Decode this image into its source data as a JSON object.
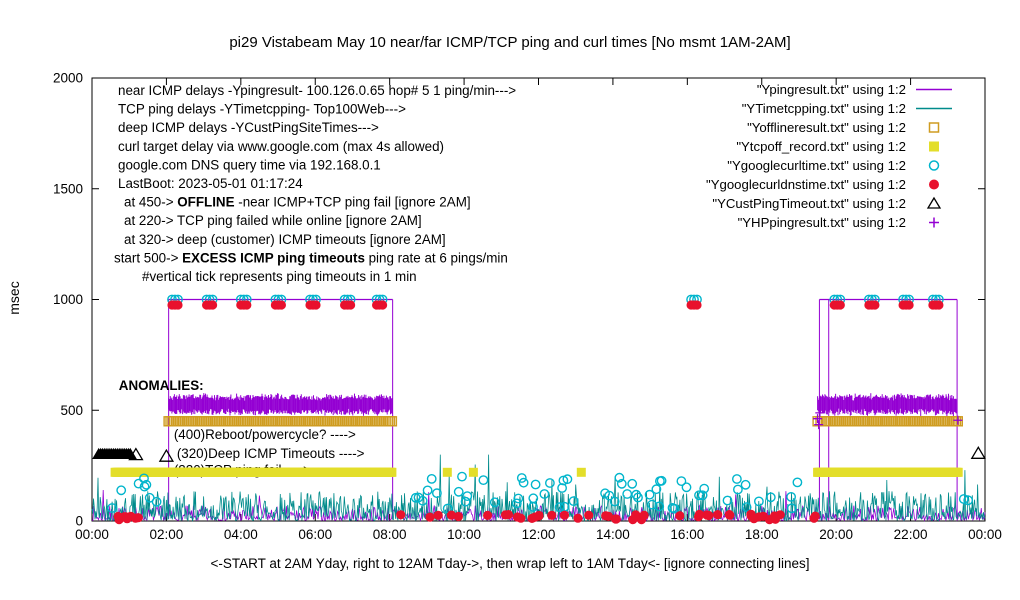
{
  "chart_data": {
    "type": "scatter",
    "title": "pi29 Vistabeam May 10  near/far ICMP/TCP ping and curl times [No msmt 1AM-2AM]",
    "ylabel": "msec",
    "xlabel": "<-START at 2AM Yday, right to 12AM Tday->, then wrap left to 1AM Tday<- [ignore connecting lines]",
    "xlim": [
      0,
      24
    ],
    "ylim": [
      0,
      2000
    ],
    "grid": false,
    "xticks": [
      {
        "v": 0,
        "label": "00:00"
      },
      {
        "v": 2,
        "label": "02:00"
      },
      {
        "v": 4,
        "label": "04:00"
      },
      {
        "v": 6,
        "label": "06:00"
      },
      {
        "v": 8,
        "label": "08:00"
      },
      {
        "v": 10,
        "label": "10:00"
      },
      {
        "v": 12,
        "label": "12:00"
      },
      {
        "v": 14,
        "label": "14:00"
      },
      {
        "v": 16,
        "label": "16:00"
      },
      {
        "v": 18,
        "label": "18:00"
      },
      {
        "v": 20,
        "label": "20:00"
      },
      {
        "v": 22,
        "label": "22:00"
      },
      {
        "v": 24,
        "label": "00:00"
      }
    ],
    "yticks": [
      {
        "v": 0,
        "label": "0"
      },
      {
        "v": 500,
        "label": "500"
      },
      {
        "v": 1000,
        "label": "1000"
      },
      {
        "v": 1500,
        "label": "1500"
      },
      {
        "v": 2000,
        "label": "2000"
      }
    ],
    "legend": [
      {
        "label": "\"Ypingresult.txt\" using 1:2",
        "marker": "line",
        "color": "#9400d3"
      },
      {
        "label": "\"YTimetcpping.txt\" using 1:2",
        "marker": "line",
        "color": "#008b8b"
      },
      {
        "label": "\"Yofflineresult.txt\" using 1:2",
        "marker": "square-open",
        "color": "#cf9c20"
      },
      {
        "label": "\"Ytcpoff_record.txt\" using 1:2",
        "marker": "square-filled",
        "color": "#e3de2a"
      },
      {
        "label": "\"Ygooglecurltime.txt\" using 1:2",
        "marker": "circle-open",
        "color": "#00b5cc"
      },
      {
        "label": "\"Ygooglecurldnstime.txt\" using 1:2",
        "marker": "circle-filled",
        "color": "#e8112d"
      },
      {
        "label": "\"YCustPingTimeout.txt\" using 1:2",
        "marker": "triangle-open",
        "color": "#000000"
      },
      {
        "label": "\"YHPpingresult.txt\" using 1:2",
        "marker": "plus",
        "color": "#9400d3"
      }
    ],
    "annotations": {
      "lines": [
        {
          "segs": [
            {
              "t": "near ICMP delays -Ypingresult- 100.126.0.65 hop# 5 1 ping/min--->"
            }
          ]
        },
        {
          "segs": [
            {
              "t": "TCP ping delays -YTimetcpping- Top100Web--->"
            }
          ]
        },
        {
          "segs": [
            {
              "t": "deep ICMP delays -YCustPingSiteTimes--->"
            }
          ]
        },
        {
          "segs": [
            {
              "t": "curl target delay via www.google.com (max 4s allowed)"
            }
          ]
        },
        {
          "segs": [
            {
              "t": "google.com DNS query time via 192.168.0.1"
            }
          ]
        },
        {
          "segs": [
            {
              "t": "LastBoot: 2023-05-01 01:17:24"
            }
          ]
        },
        {
          "indent": 6,
          "segs": [
            {
              "t": "at 450->  "
            },
            {
              "t": "OFFLINE",
              "b": true
            },
            {
              "t": "  -near ICMP+TCP ping fail [ignore 2AM]"
            }
          ]
        },
        {
          "indent": 6,
          "segs": [
            {
              "t": "at 220-> TCP ping failed while online [ignore 2AM]"
            }
          ]
        },
        {
          "indent": 6,
          "segs": [
            {
              "t": "at 320-> deep (customer) ICMP timeouts [ignore 2AM]"
            }
          ]
        },
        {
          "indent": -4,
          "segs": [
            {
              "t": "start 500->  "
            },
            {
              "t": "EXCESS ICMP ping timeouts",
              "b": true
            },
            {
              "t": "  ping rate at 6 pings/min"
            }
          ]
        },
        {
          "indent": 24,
          "segs": [
            {
              "t": "#vertical tick represents ping timeouts in 1 min"
            }
          ]
        }
      ]
    },
    "anomaly_labels": [
      {
        "t": "ANOMALIES:",
        "b": true,
        "x": 0.72,
        "y": 592
      },
      {
        "t": "(400)Reboot/powercycle? ---->",
        "x": 2.2,
        "y": 370
      },
      {
        "t": "(320)Deep ICMP Timeouts ---->",
        "x": 2.28,
        "y": 285
      },
      {
        "t": "(220)TCP ping fail ---->",
        "x": 2.2,
        "y": 210
      }
    ],
    "series": [
      {
        "name": "Ypingresult.txt",
        "kind": "noisy-line",
        "color": "#9400d3",
        "seed": 7,
        "x0": 0,
        "x1": 24,
        "step": 0.025,
        "ymin": 3,
        "ymax": 70,
        "pow": 2.2,
        "spikes": [
          [
            0.3,
            140
          ],
          [
            4.5,
            115
          ],
          [
            9.05,
            130
          ],
          [
            12.6,
            105
          ],
          [
            17.3,
            120
          ],
          [
            18.65,
            135
          ]
        ],
        "plateaus": [
          {
            "x0": 2.06,
            "x1": 8.08,
            "y": 1000
          },
          {
            "x0": 19.55,
            "x1": 23.25,
            "y": 1000
          }
        ],
        "verticals": [
          2.06,
          8.08,
          19.55,
          19.8,
          23.25
        ],
        "tick_bands": [
          {
            "x0": 2.06,
            "x1": 8.08,
            "yc": 525,
            "h": 90,
            "step": 0.022,
            "seed": 3
          },
          {
            "x0": 19.5,
            "x1": 23.25,
            "yc": 525,
            "h": 90,
            "step": 0.022,
            "seed": 4
          }
        ]
      },
      {
        "name": "YTimetcpping.txt",
        "kind": "noisy-line",
        "color": "#008b8b",
        "seed": 42,
        "x0": 0,
        "x1": 24,
        "step": 0.02,
        "ymin": 2,
        "ymax": 135,
        "pow": 1.8,
        "spikes": [
          [
            0.15,
            195
          ],
          [
            9.35,
            300
          ],
          [
            9.6,
            215
          ],
          [
            10.3,
            255
          ],
          [
            10.65,
            300
          ],
          [
            11.15,
            175
          ],
          [
            12.35,
            185
          ],
          [
            13.0,
            165
          ],
          [
            14.05,
            200
          ],
          [
            15.25,
            160
          ],
          [
            16.85,
            200
          ],
          [
            18.15,
            155
          ],
          [
            21.35,
            185
          ],
          [
            23.45,
            230
          ],
          [
            23.8,
            165
          ]
        ]
      },
      {
        "name": "Ytcpoff_record.txt",
        "kind": "squares",
        "fill": true,
        "color": "#e3de2a",
        "y": 220,
        "size": 9,
        "band_step": 0.03,
        "bands": [
          [
            0.62,
            8.08
          ],
          [
            19.5,
            23.3
          ]
        ],
        "points": [
          9.55,
          10.25,
          13.15
        ]
      },
      {
        "name": "Yofflineresult.txt",
        "kind": "squares",
        "fill": false,
        "color": "#cf9c20",
        "y": 450,
        "size": 9,
        "band_step": 0.05,
        "bands": [
          [
            2.06,
            8.08
          ],
          [
            19.72,
            23.3
          ]
        ],
        "points": [
          19.5,
          19.58
        ]
      },
      {
        "name": "Ygooglecurltime.txt",
        "kind": "circles",
        "fill": false,
        "color": "#00b5cc",
        "r": 4.2,
        "top_clusters": {
          "xs": [
            2.15,
            3.08,
            4.0,
            4.93,
            5.86,
            6.79,
            7.65,
            16.1,
            19.95,
            20.88,
            21.8,
            22.6
          ],
          "y": 1000,
          "n": 3,
          "dx": 0.08
        },
        "scatter": {
          "ranges": [
            [
              0.05,
              2.0
            ],
            [
              8.1,
              19.45
            ],
            [
              23.35,
              23.95
            ]
          ],
          "ymin": 55,
          "ymax": 205,
          "count": 70,
          "seed": 21
        }
      },
      {
        "name": "Ygooglecurldnstime.txt",
        "kind": "circles",
        "fill": true,
        "color": "#e8112d",
        "r": 4.6,
        "top_clusters": {
          "xs": [
            2.15,
            3.08,
            4.0,
            4.93,
            5.86,
            6.79,
            7.65,
            16.1,
            19.95,
            20.88,
            21.8,
            22.6
          ],
          "y": 975,
          "n": 3,
          "dx": 0.08
        },
        "scatter": {
          "ranges": [
            [
              0.05,
              2.0
            ],
            [
              8.1,
              19.45
            ],
            [
              23.35,
              23.95
            ]
          ],
          "ymin": 6,
          "ymax": 30,
          "count": 55,
          "seed": 33
        }
      },
      {
        "name": "YCustPingTimeout.txt",
        "kind": "triangles",
        "color": "#000000",
        "size": 13,
        "filled_cluster": {
          "x0": 0.18,
          "x1": 1.05,
          "y": 305,
          "step": 0.05
        },
        "open_points": [
          [
            1.18,
            302
          ],
          [
            2.0,
            295
          ],
          [
            23.82,
            308
          ]
        ]
      },
      {
        "name": "YHPpingresult.txt",
        "kind": "plus",
        "color": "#9400d3",
        "size": 9,
        "points": [
          [
            19.5,
            462
          ],
          [
            19.53,
            435
          ],
          [
            19.56,
            488
          ],
          [
            23.27,
            455
          ]
        ]
      }
    ]
  }
}
